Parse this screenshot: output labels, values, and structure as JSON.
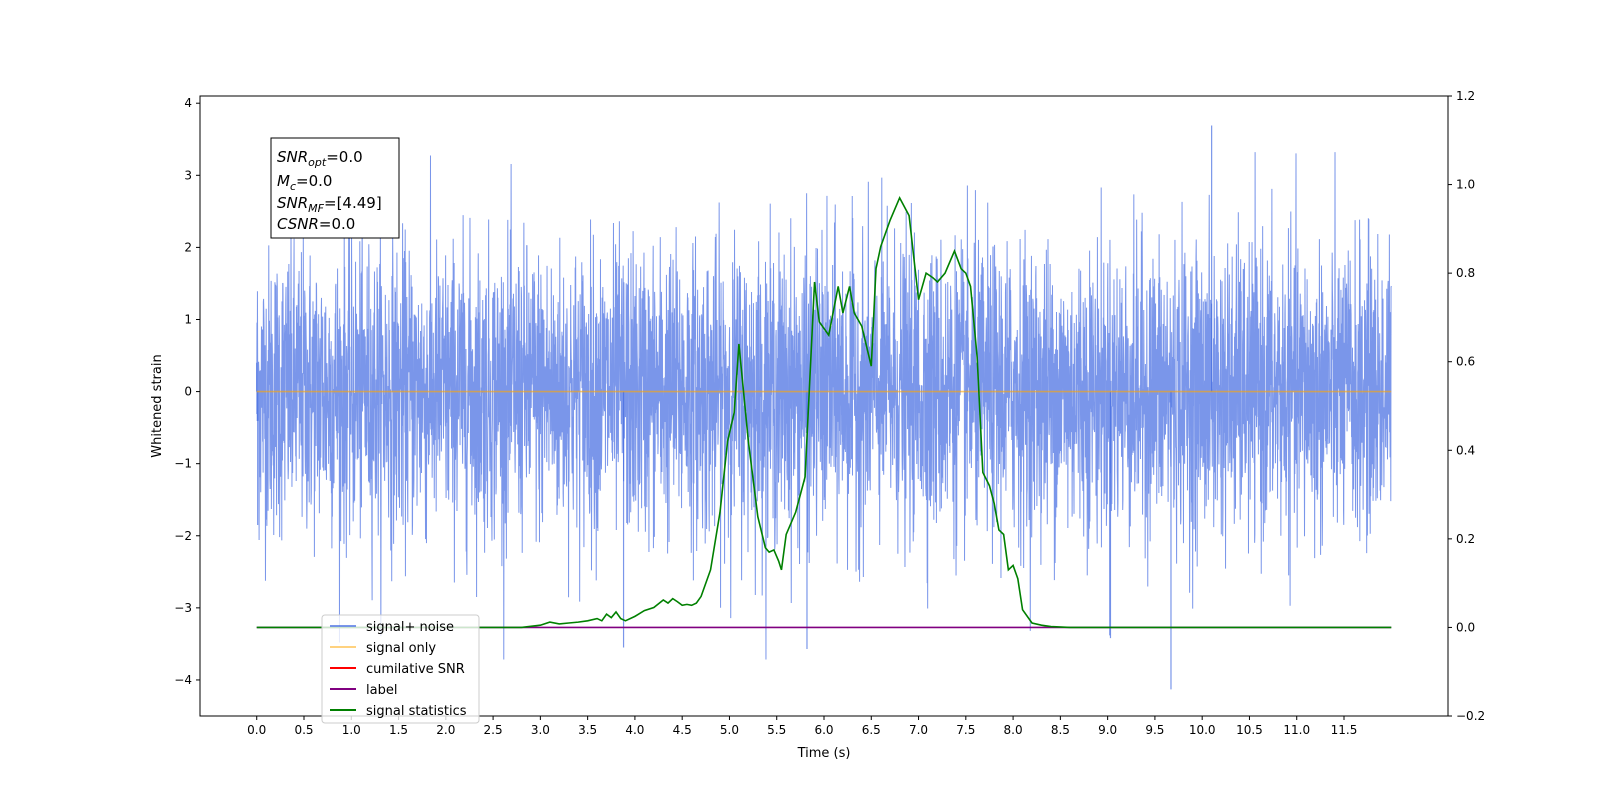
{
  "chart_data": {
    "type": "line",
    "title": "",
    "xlabel": "Time (s)",
    "ylabel": "Whitened strain",
    "xlim": [
      -0.6,
      12.6
    ],
    "ylim": [
      -4.5,
      4.1
    ],
    "y2lim": [
      -0.2,
      1.2
    ],
    "x_ticks": [
      "0.0",
      "0.5",
      "1.0",
      "1.5",
      "2.0",
      "2.5",
      "3.0",
      "3.5",
      "4.0",
      "4.5",
      "5.0",
      "5.5",
      "6.0",
      "6.5",
      "7.0",
      "7.5",
      "8.0",
      "8.5",
      "9.0",
      "9.5",
      "10.0",
      "10.5",
      "11.0",
      "11.5"
    ],
    "y_ticks": [
      "4",
      "3",
      "2",
      "1",
      "0",
      "−1",
      "−2",
      "−3",
      "−4"
    ],
    "y2_ticks": [
      "1.2",
      "1.0",
      "0.8",
      "0.6",
      "0.4",
      "0.2",
      "0.0",
      "−0.2"
    ],
    "grid": false,
    "legend_placement": "lower-left",
    "info_box": {
      "snr_opt": {
        "base": "SNR",
        "sub": "opt",
        "value": "=0.0"
      },
      "mc": {
        "base": "M",
        "sub": "c",
        "value": "=0.0"
      },
      "snr_mf": {
        "base": "SNR",
        "sub": "MF",
        "value": "=[4.49]"
      },
      "csnr": {
        "base": "CSNR",
        "sub": "",
        "value": "=0.0"
      }
    },
    "series": [
      {
        "name": "signal+ noise",
        "color": "#4169e1",
        "axis": "left",
        "kind": "noise",
        "x_range": [
          0.0,
          12.0
        ],
        "std": 1.0,
        "y_min": -4.13,
        "y_max": 3.69,
        "note_points": [
          [
            0.0,
            0.4
          ],
          [
            0.01,
            -1.85
          ],
          [
            10.1,
            3.69
          ],
          [
            9.67,
            -4.13
          ],
          [
            3.88,
            -3.55
          ],
          [
            5.82,
            -3.57
          ],
          [
            9.03,
            -3.42
          ]
        ]
      },
      {
        "name": "signal only",
        "color": "#ffa500",
        "axis": "left",
        "x": [
          0.0,
          12.0
        ],
        "y": [
          0.0,
          0.0
        ]
      },
      {
        "name": "cumilative SNR",
        "color": "#ff0000",
        "axis": "right",
        "x": [],
        "y": []
      },
      {
        "name": "label",
        "color": "#800080",
        "axis": "right",
        "x": [
          0.0,
          12.0
        ],
        "y": [
          0.0,
          0.0
        ]
      },
      {
        "name": "signal statistics",
        "color": "#008000",
        "axis": "right",
        "x": [
          0.0,
          2.8,
          3.0,
          3.1,
          3.2,
          3.3,
          3.4,
          3.5,
          3.6,
          3.65,
          3.7,
          3.75,
          3.8,
          3.85,
          3.9,
          4.0,
          4.1,
          4.2,
          4.3,
          4.35,
          4.4,
          4.45,
          4.5,
          4.55,
          4.6,
          4.65,
          4.7,
          4.8,
          4.9,
          4.98,
          5.05,
          5.1,
          5.2,
          5.3,
          5.38,
          5.42,
          5.47,
          5.52,
          5.55,
          5.6,
          5.7,
          5.8,
          5.9,
          5.95,
          6.05,
          6.15,
          6.2,
          6.27,
          6.32,
          6.4,
          6.5,
          6.55,
          6.6,
          6.7,
          6.8,
          6.9,
          7.0,
          7.08,
          7.15,
          7.2,
          7.28,
          7.38,
          7.45,
          7.5,
          7.55,
          7.62,
          7.68,
          7.75,
          7.8,
          7.85,
          7.9,
          7.95,
          8.0,
          8.05,
          8.1,
          8.2,
          8.3,
          8.4,
          8.6,
          9.0,
          12.0
        ],
        "y": [
          0.0,
          0.0,
          0.005,
          0.012,
          0.008,
          0.01,
          0.012,
          0.015,
          0.02,
          0.015,
          0.03,
          0.022,
          0.035,
          0.02,
          0.015,
          0.025,
          0.038,
          0.045,
          0.062,
          0.055,
          0.065,
          0.058,
          0.05,
          0.052,
          0.05,
          0.055,
          0.07,
          0.13,
          0.26,
          0.42,
          0.485,
          0.64,
          0.42,
          0.25,
          0.18,
          0.17,
          0.175,
          0.15,
          0.13,
          0.21,
          0.26,
          0.34,
          0.78,
          0.69,
          0.66,
          0.77,
          0.71,
          0.77,
          0.71,
          0.68,
          0.59,
          0.81,
          0.86,
          0.92,
          0.97,
          0.93,
          0.74,
          0.8,
          0.79,
          0.78,
          0.8,
          0.85,
          0.81,
          0.8,
          0.77,
          0.61,
          0.35,
          0.32,
          0.28,
          0.22,
          0.21,
          0.13,
          0.14,
          0.11,
          0.04,
          0.01,
          0.005,
          0.002,
          0.0,
          0.0,
          0.0
        ]
      }
    ]
  }
}
